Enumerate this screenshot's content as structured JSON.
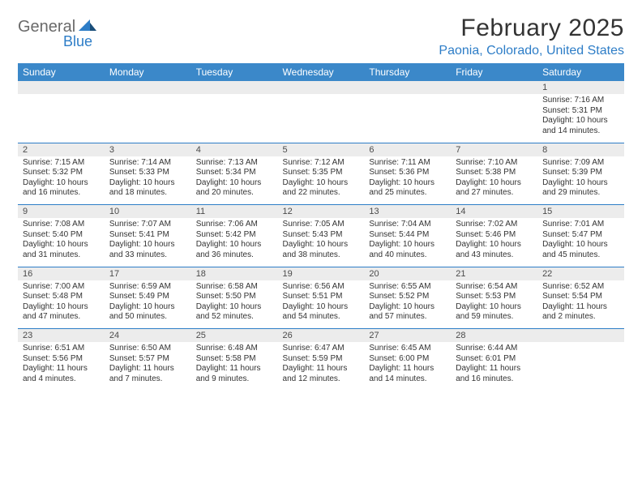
{
  "logo": {
    "word1": "General",
    "word2": "Blue"
  },
  "title": "February 2025",
  "location": "Paonia, Colorado, United States",
  "header_bg": "#3b88c9",
  "accent_color": "#2d7dc7",
  "alt_row_bg": "#ececec",
  "text_color": "#333333",
  "weekdays": [
    "Sunday",
    "Monday",
    "Tuesday",
    "Wednesday",
    "Thursday",
    "Friday",
    "Saturday"
  ],
  "weeks": [
    {
      "nums": [
        "",
        "",
        "",
        "",
        "",
        "",
        "1"
      ],
      "cells": [
        null,
        null,
        null,
        null,
        null,
        null,
        {
          "sr": "Sunrise: 7:16 AM",
          "ss": "Sunset: 5:31 PM",
          "dl1": "Daylight: 10 hours",
          "dl2": "and 14 minutes."
        }
      ]
    },
    {
      "nums": [
        "2",
        "3",
        "4",
        "5",
        "6",
        "7",
        "8"
      ],
      "cells": [
        {
          "sr": "Sunrise: 7:15 AM",
          "ss": "Sunset: 5:32 PM",
          "dl1": "Daylight: 10 hours",
          "dl2": "and 16 minutes."
        },
        {
          "sr": "Sunrise: 7:14 AM",
          "ss": "Sunset: 5:33 PM",
          "dl1": "Daylight: 10 hours",
          "dl2": "and 18 minutes."
        },
        {
          "sr": "Sunrise: 7:13 AM",
          "ss": "Sunset: 5:34 PM",
          "dl1": "Daylight: 10 hours",
          "dl2": "and 20 minutes."
        },
        {
          "sr": "Sunrise: 7:12 AM",
          "ss": "Sunset: 5:35 PM",
          "dl1": "Daylight: 10 hours",
          "dl2": "and 22 minutes."
        },
        {
          "sr": "Sunrise: 7:11 AM",
          "ss": "Sunset: 5:36 PM",
          "dl1": "Daylight: 10 hours",
          "dl2": "and 25 minutes."
        },
        {
          "sr": "Sunrise: 7:10 AM",
          "ss": "Sunset: 5:38 PM",
          "dl1": "Daylight: 10 hours",
          "dl2": "and 27 minutes."
        },
        {
          "sr": "Sunrise: 7:09 AM",
          "ss": "Sunset: 5:39 PM",
          "dl1": "Daylight: 10 hours",
          "dl2": "and 29 minutes."
        }
      ]
    },
    {
      "nums": [
        "9",
        "10",
        "11",
        "12",
        "13",
        "14",
        "15"
      ],
      "cells": [
        {
          "sr": "Sunrise: 7:08 AM",
          "ss": "Sunset: 5:40 PM",
          "dl1": "Daylight: 10 hours",
          "dl2": "and 31 minutes."
        },
        {
          "sr": "Sunrise: 7:07 AM",
          "ss": "Sunset: 5:41 PM",
          "dl1": "Daylight: 10 hours",
          "dl2": "and 33 minutes."
        },
        {
          "sr": "Sunrise: 7:06 AM",
          "ss": "Sunset: 5:42 PM",
          "dl1": "Daylight: 10 hours",
          "dl2": "and 36 minutes."
        },
        {
          "sr": "Sunrise: 7:05 AM",
          "ss": "Sunset: 5:43 PM",
          "dl1": "Daylight: 10 hours",
          "dl2": "and 38 minutes."
        },
        {
          "sr": "Sunrise: 7:04 AM",
          "ss": "Sunset: 5:44 PM",
          "dl1": "Daylight: 10 hours",
          "dl2": "and 40 minutes."
        },
        {
          "sr": "Sunrise: 7:02 AM",
          "ss": "Sunset: 5:46 PM",
          "dl1": "Daylight: 10 hours",
          "dl2": "and 43 minutes."
        },
        {
          "sr": "Sunrise: 7:01 AM",
          "ss": "Sunset: 5:47 PM",
          "dl1": "Daylight: 10 hours",
          "dl2": "and 45 minutes."
        }
      ]
    },
    {
      "nums": [
        "16",
        "17",
        "18",
        "19",
        "20",
        "21",
        "22"
      ],
      "cells": [
        {
          "sr": "Sunrise: 7:00 AM",
          "ss": "Sunset: 5:48 PM",
          "dl1": "Daylight: 10 hours",
          "dl2": "and 47 minutes."
        },
        {
          "sr": "Sunrise: 6:59 AM",
          "ss": "Sunset: 5:49 PM",
          "dl1": "Daylight: 10 hours",
          "dl2": "and 50 minutes."
        },
        {
          "sr": "Sunrise: 6:58 AM",
          "ss": "Sunset: 5:50 PM",
          "dl1": "Daylight: 10 hours",
          "dl2": "and 52 minutes."
        },
        {
          "sr": "Sunrise: 6:56 AM",
          "ss": "Sunset: 5:51 PM",
          "dl1": "Daylight: 10 hours",
          "dl2": "and 54 minutes."
        },
        {
          "sr": "Sunrise: 6:55 AM",
          "ss": "Sunset: 5:52 PM",
          "dl1": "Daylight: 10 hours",
          "dl2": "and 57 minutes."
        },
        {
          "sr": "Sunrise: 6:54 AM",
          "ss": "Sunset: 5:53 PM",
          "dl1": "Daylight: 10 hours",
          "dl2": "and 59 minutes."
        },
        {
          "sr": "Sunrise: 6:52 AM",
          "ss": "Sunset: 5:54 PM",
          "dl1": "Daylight: 11 hours",
          "dl2": "and 2 minutes."
        }
      ]
    },
    {
      "nums": [
        "23",
        "24",
        "25",
        "26",
        "27",
        "28",
        ""
      ],
      "cells": [
        {
          "sr": "Sunrise: 6:51 AM",
          "ss": "Sunset: 5:56 PM",
          "dl1": "Daylight: 11 hours",
          "dl2": "and 4 minutes."
        },
        {
          "sr": "Sunrise: 6:50 AM",
          "ss": "Sunset: 5:57 PM",
          "dl1": "Daylight: 11 hours",
          "dl2": "and 7 minutes."
        },
        {
          "sr": "Sunrise: 6:48 AM",
          "ss": "Sunset: 5:58 PM",
          "dl1": "Daylight: 11 hours",
          "dl2": "and 9 minutes."
        },
        {
          "sr": "Sunrise: 6:47 AM",
          "ss": "Sunset: 5:59 PM",
          "dl1": "Daylight: 11 hours",
          "dl2": "and 12 minutes."
        },
        {
          "sr": "Sunrise: 6:45 AM",
          "ss": "Sunset: 6:00 PM",
          "dl1": "Daylight: 11 hours",
          "dl2": "and 14 minutes."
        },
        {
          "sr": "Sunrise: 6:44 AM",
          "ss": "Sunset: 6:01 PM",
          "dl1": "Daylight: 11 hours",
          "dl2": "and 16 minutes."
        },
        null
      ]
    }
  ]
}
